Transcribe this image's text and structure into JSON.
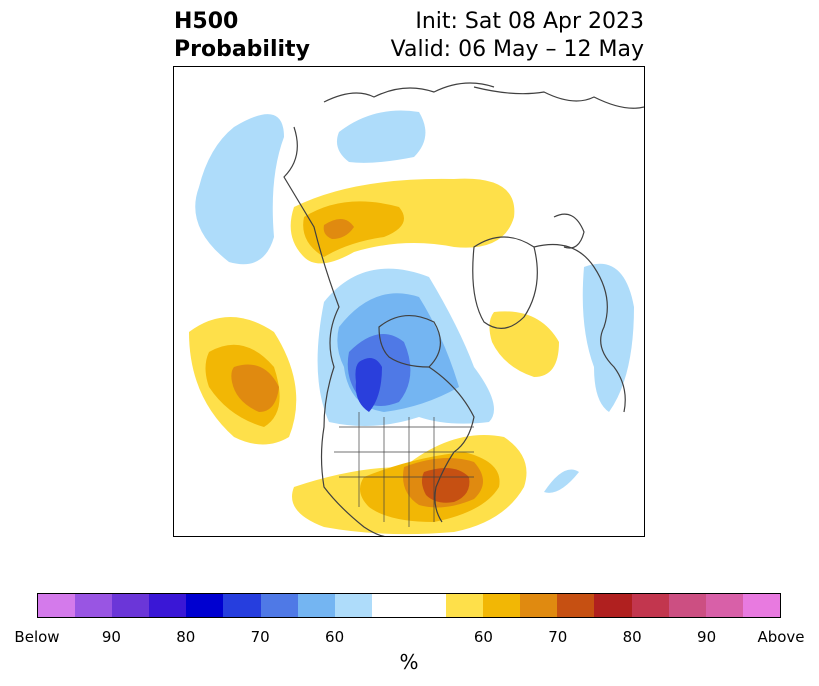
{
  "title": {
    "left_line1": "H500",
    "left_line2": "Probability",
    "right_line1": "Init: Sat 08 Apr 2023",
    "right_line2": "Valid: 06 May – 12 May"
  },
  "map": {
    "region": "North America / Arctic",
    "colors": {
      "below_light": "#aedcfa",
      "below_mid": "#74b5f2",
      "below_strong": "#4f79e6",
      "below_deep": "#2a3fdc",
      "above_light": "#fee04a",
      "above_mid": "#f2b705",
      "above_strong": "#e08a10",
      "above_deep": "#c65012",
      "coast": "#404040"
    }
  },
  "colorbar": {
    "colors": [
      "#d47aeb",
      "#9955e3",
      "#6b36d8",
      "#3a17d6",
      "#0000d0",
      "#263ede",
      "#4f79e6",
      "#74b5f2",
      "#aedcfa",
      "#ffffff",
      "#ffffff",
      "#fee04a",
      "#f2b705",
      "#e08a10",
      "#c65012",
      "#b0201f",
      "#c2364e",
      "#cc4f82",
      "#d860a8",
      "#e87ae0"
    ],
    "ticks": [
      {
        "label": "Below",
        "index": 0
      },
      {
        "label": "90",
        "index": 2
      },
      {
        "label": "80",
        "index": 4
      },
      {
        "label": "70",
        "index": 6
      },
      {
        "label": "60",
        "index": 8
      },
      {
        "label": "60",
        "index": 12
      },
      {
        "label": "70",
        "index": 14
      },
      {
        "label": "80",
        "index": 16
      },
      {
        "label": "90",
        "index": 18
      },
      {
        "label": "Above",
        "index": 20
      }
    ],
    "label": "%"
  }
}
